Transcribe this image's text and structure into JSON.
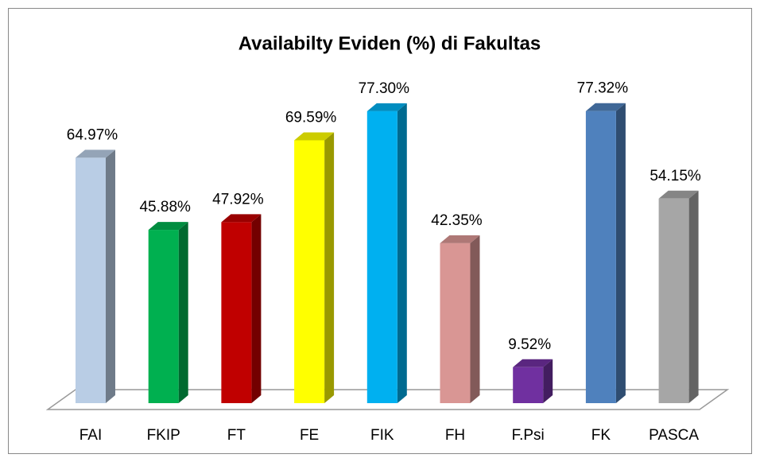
{
  "chart_data": {
    "type": "bar3d",
    "title": "Availabilty Eviden (%) di Fakultas",
    "categories": [
      "FAI",
      "FKIP",
      "FT",
      "FE",
      "FIK",
      "FH",
      "F.Psi",
      "FK",
      "PASCA"
    ],
    "values": [
      64.97,
      45.88,
      47.92,
      69.59,
      77.3,
      42.35,
      9.52,
      77.32,
      54.15
    ],
    "value_labels": [
      "64.97%",
      "45.88%",
      "47.92%",
      "69.59%",
      "77.30%",
      "42.35%",
      "9.52%",
      "77.32%",
      "54.15%"
    ],
    "colors": [
      "#b9cde5",
      "#00b050",
      "#c00000",
      "#ffff00",
      "#00b0f0",
      "#d99694",
      "#7030a0",
      "#4f81bd",
      "#a6a6a6"
    ]
  }
}
